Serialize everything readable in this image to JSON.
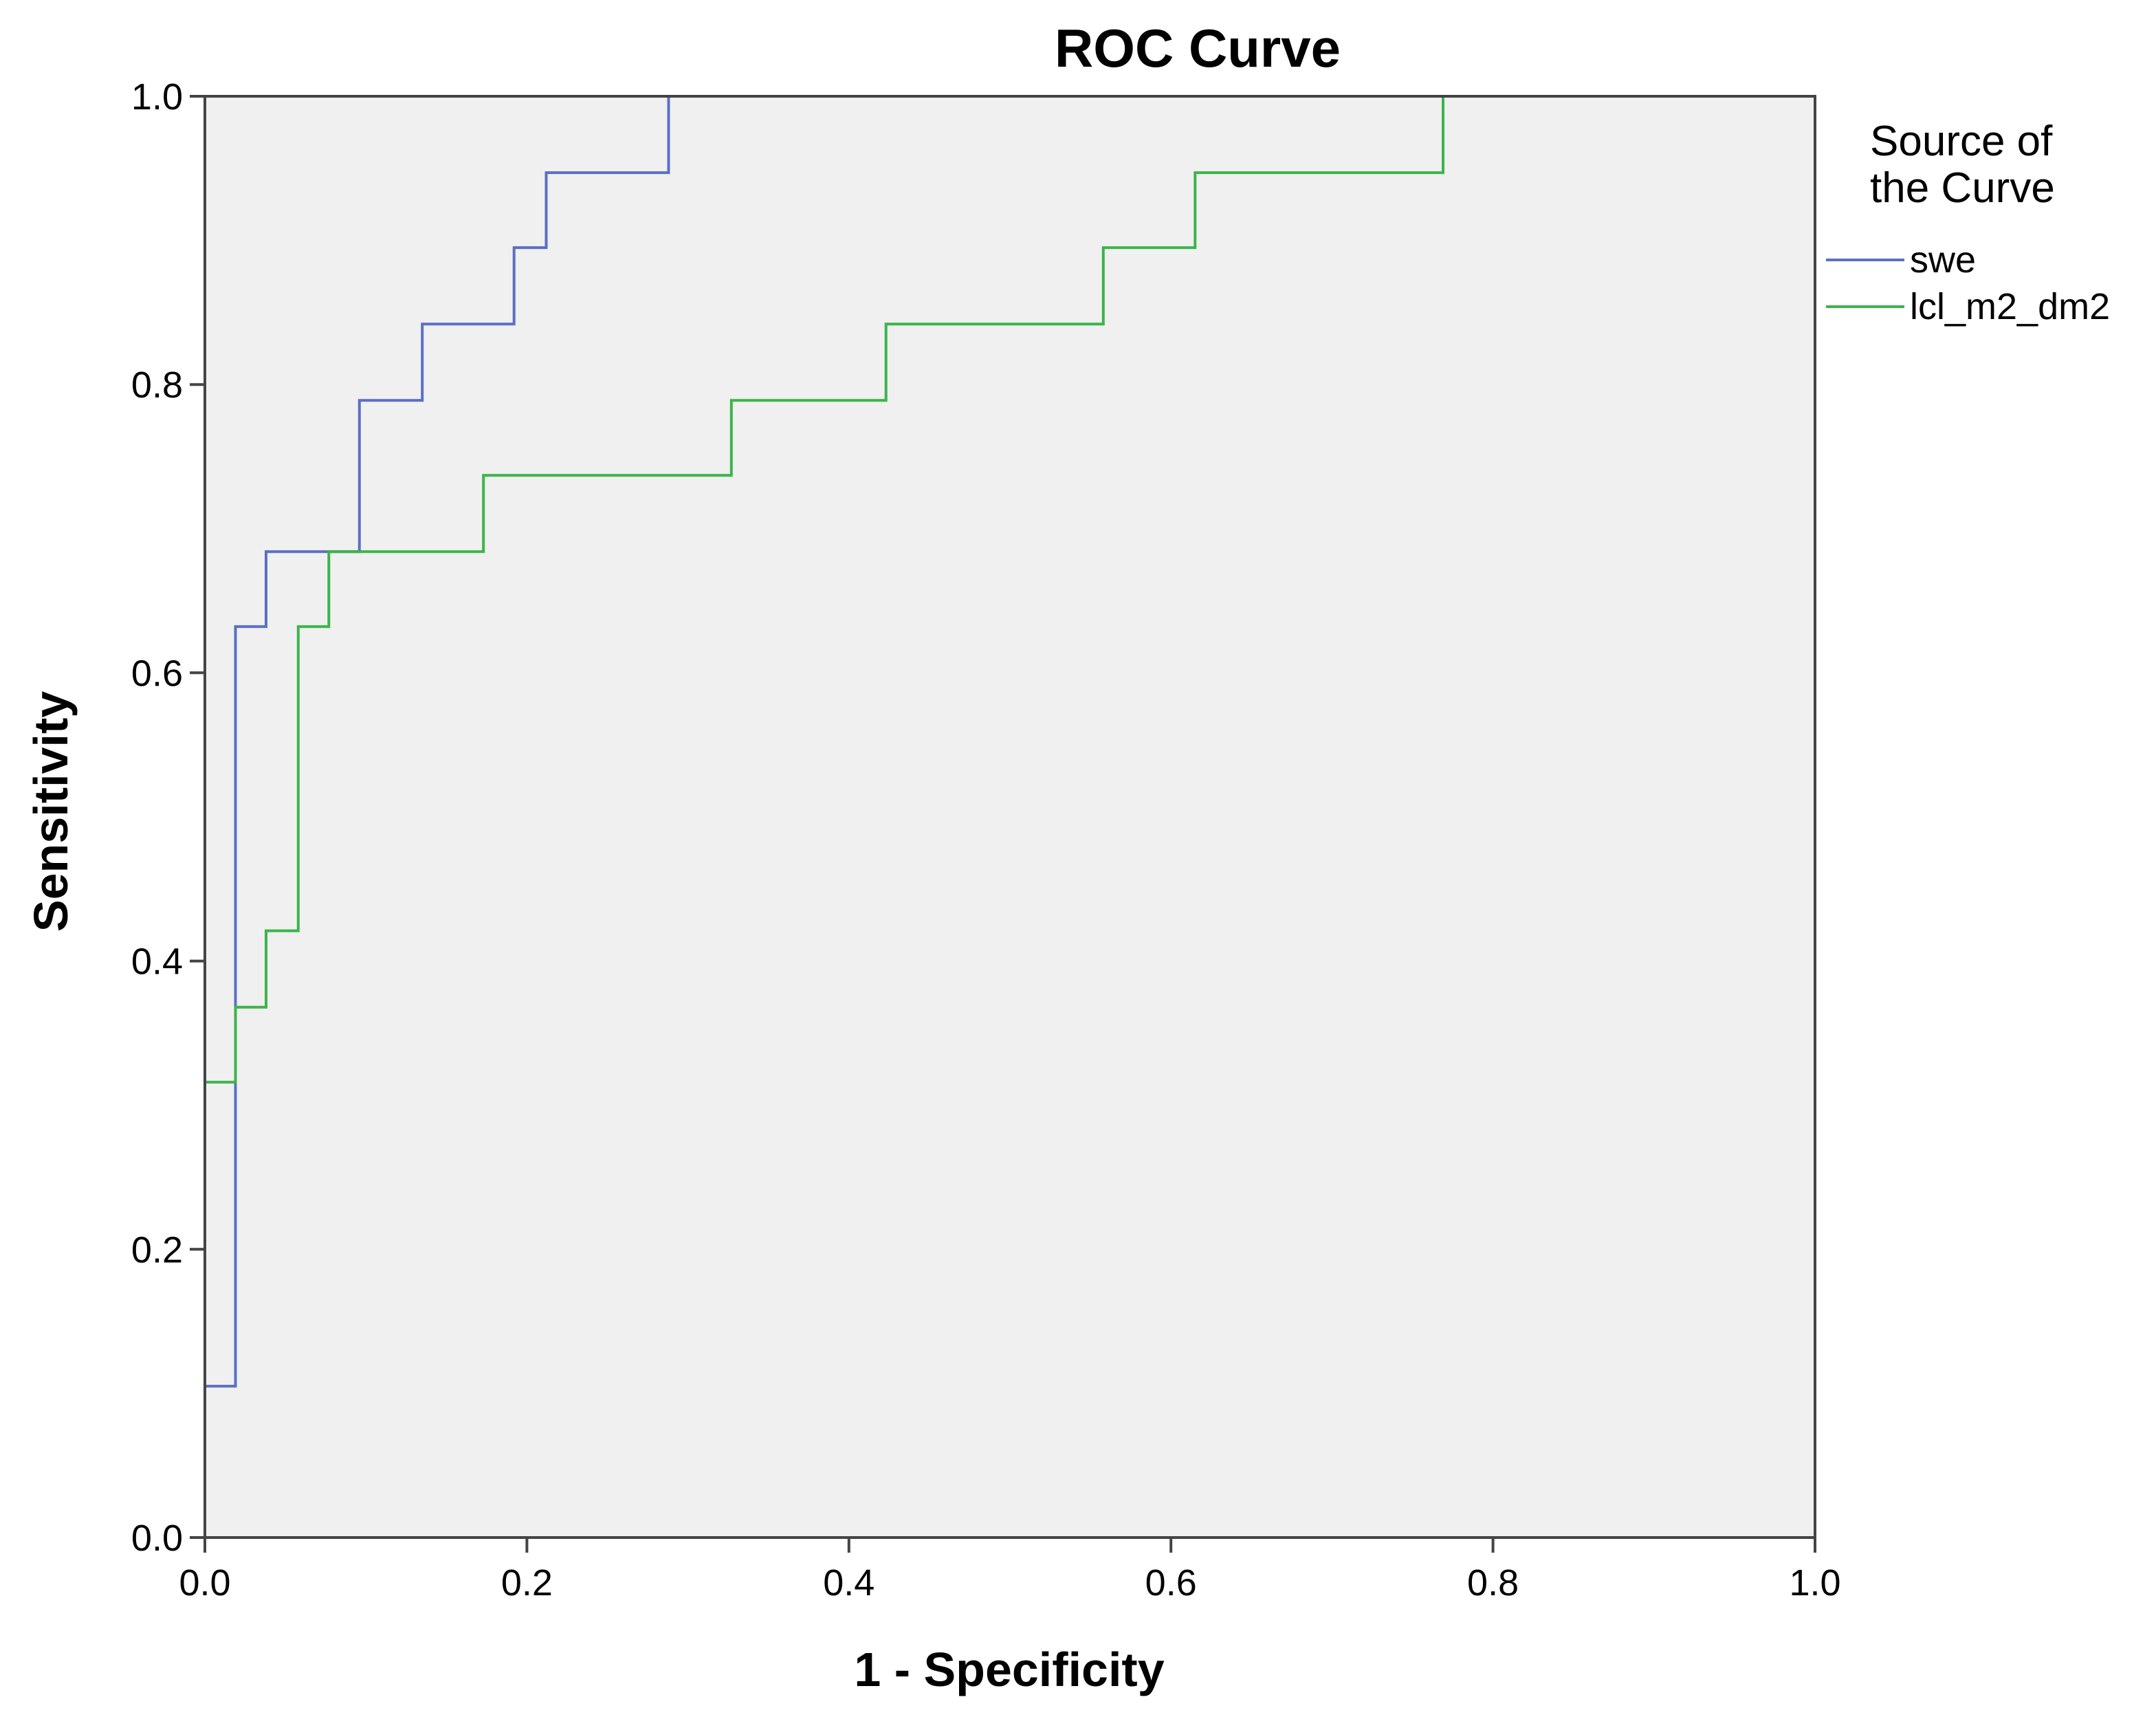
{
  "chart_data": {
    "type": "line",
    "step": true,
    "title": "ROC Curve",
    "xlabel": "1 - Specificity",
    "ylabel": "Sensitivity",
    "xlim": [
      0.0,
      1.0
    ],
    "ylim": [
      0.0,
      1.0
    ],
    "x_ticks": [
      "0.0",
      "0.2",
      "0.4",
      "0.6",
      "0.8",
      "1.0"
    ],
    "y_ticks": [
      "0.0",
      "0.2",
      "0.4",
      "0.6",
      "0.8",
      "1.0"
    ],
    "grid": false,
    "background": "#f0f0f0",
    "legend": {
      "title_lines": [
        "Source of",
        "the Curve"
      ],
      "position": "right"
    },
    "series": [
      {
        "name": "swe",
        "color": "#5b6fc4",
        "points": [
          [
            0.0,
            0.0
          ],
          [
            0.0,
            0.105
          ],
          [
            0.019,
            0.105
          ],
          [
            0.019,
            0.632
          ],
          [
            0.038,
            0.632
          ],
          [
            0.038,
            0.684
          ],
          [
            0.096,
            0.684
          ],
          [
            0.096,
            0.789
          ],
          [
            0.135,
            0.789
          ],
          [
            0.135,
            0.842
          ],
          [
            0.192,
            0.842
          ],
          [
            0.192,
            0.895
          ],
          [
            0.212,
            0.895
          ],
          [
            0.212,
            0.947
          ],
          [
            0.288,
            0.947
          ],
          [
            0.288,
            1.0
          ],
          [
            1.0,
            1.0
          ]
        ]
      },
      {
        "name": "lcl_m2_dm2",
        "color": "#3cb44b",
        "points": [
          [
            0.0,
            0.0
          ],
          [
            0.0,
            0.316
          ],
          [
            0.019,
            0.316
          ],
          [
            0.019,
            0.368
          ],
          [
            0.038,
            0.368
          ],
          [
            0.038,
            0.421
          ],
          [
            0.058,
            0.421
          ],
          [
            0.058,
            0.632
          ],
          [
            0.077,
            0.632
          ],
          [
            0.077,
            0.684
          ],
          [
            0.173,
            0.684
          ],
          [
            0.173,
            0.737
          ],
          [
            0.327,
            0.737
          ],
          [
            0.327,
            0.789
          ],
          [
            0.423,
            0.789
          ],
          [
            0.423,
            0.842
          ],
          [
            0.558,
            0.842
          ],
          [
            0.558,
            0.895
          ],
          [
            0.615,
            0.895
          ],
          [
            0.615,
            0.947
          ],
          [
            0.769,
            0.947
          ],
          [
            0.769,
            1.0
          ],
          [
            1.0,
            1.0
          ]
        ]
      }
    ]
  }
}
